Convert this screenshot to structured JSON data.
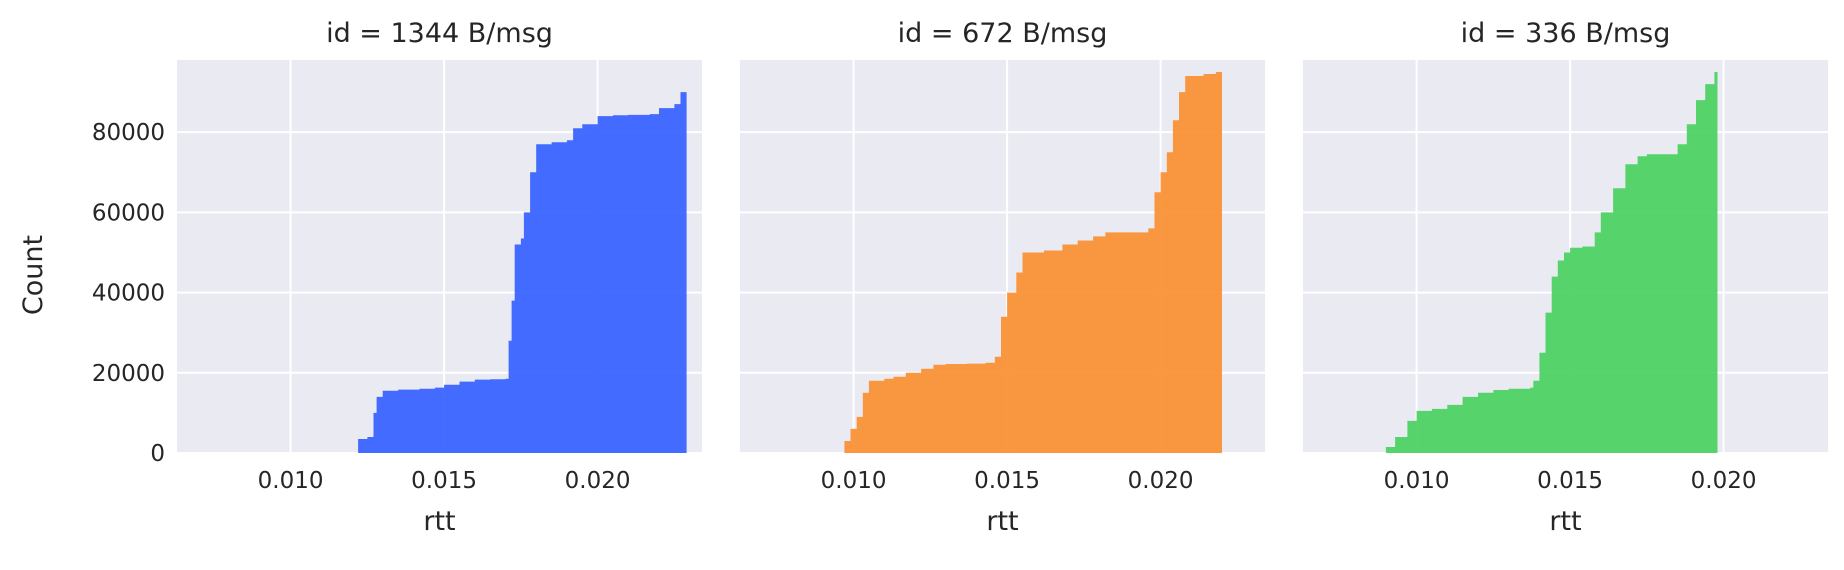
{
  "chart_data": {
    "type": "area",
    "style": "seaborn-darkgrid",
    "background_color": "#eaeaf2",
    "grid_color": "#ffffff",
    "grid": true,
    "xlabel": "rtt",
    "ylabel": "Count",
    "xlim": [
      0.0063,
      0.0234
    ],
    "ylim": [
      0,
      98000
    ],
    "xticks": [
      0.01,
      0.015,
      0.02
    ],
    "xtick_labels": [
      "0.010",
      "0.015",
      "0.020"
    ],
    "yticks": [
      0,
      20000,
      40000,
      60000,
      80000
    ],
    "ytick_labels": [
      "0",
      "20000",
      "40000",
      "60000",
      "80000"
    ],
    "panels": [
      {
        "title": "id = 1344 B/msg",
        "color": "#3a64ff",
        "points": [
          [
            0.012,
            0
          ],
          [
            0.0122,
            3500
          ],
          [
            0.0125,
            4000
          ],
          [
            0.0127,
            10000
          ],
          [
            0.0128,
            14000
          ],
          [
            0.013,
            15500
          ],
          [
            0.0135,
            15800
          ],
          [
            0.0142,
            16000
          ],
          [
            0.0147,
            16300
          ],
          [
            0.015,
            17000
          ],
          [
            0.0155,
            17800
          ],
          [
            0.016,
            18300
          ],
          [
            0.0165,
            18400
          ],
          [
            0.017,
            18500
          ],
          [
            0.0171,
            28000
          ],
          [
            0.0172,
            38000
          ],
          [
            0.0173,
            52000
          ],
          [
            0.0175,
            53500
          ],
          [
            0.0176,
            60000
          ],
          [
            0.0178,
            70000
          ],
          [
            0.018,
            77000
          ],
          [
            0.0185,
            77500
          ],
          [
            0.019,
            78000
          ],
          [
            0.0192,
            81000
          ],
          [
            0.0195,
            82000
          ],
          [
            0.02,
            84000
          ],
          [
            0.0205,
            84200
          ],
          [
            0.021,
            84300
          ],
          [
            0.0217,
            84500
          ],
          [
            0.022,
            86000
          ],
          [
            0.0225,
            87000
          ],
          [
            0.0227,
            90000
          ],
          [
            0.0229,
            95000
          ]
        ]
      },
      {
        "title": "id = 672 B/msg",
        "color": "#fa9237",
        "points": [
          [
            0.0096,
            0
          ],
          [
            0.0097,
            3000
          ],
          [
            0.0099,
            6000
          ],
          [
            0.0101,
            9000
          ],
          [
            0.0103,
            15000
          ],
          [
            0.0105,
            18000
          ],
          [
            0.011,
            18500
          ],
          [
            0.0113,
            19000
          ],
          [
            0.0117,
            20000
          ],
          [
            0.0122,
            21000
          ],
          [
            0.0126,
            22000
          ],
          [
            0.013,
            22200
          ],
          [
            0.0137,
            22300
          ],
          [
            0.0143,
            22500
          ],
          [
            0.0146,
            24000
          ],
          [
            0.0148,
            34000
          ],
          [
            0.015,
            40000
          ],
          [
            0.0153,
            45000
          ],
          [
            0.0155,
            50000
          ],
          [
            0.0162,
            50500
          ],
          [
            0.0168,
            52000
          ],
          [
            0.0173,
            53000
          ],
          [
            0.0178,
            54000
          ],
          [
            0.0182,
            55000
          ],
          [
            0.019,
            55000
          ],
          [
            0.0196,
            56000
          ],
          [
            0.0198,
            65000
          ],
          [
            0.02,
            70000
          ],
          [
            0.0202,
            75000
          ],
          [
            0.0204,
            83000
          ],
          [
            0.0206,
            90000
          ],
          [
            0.0208,
            94000
          ],
          [
            0.0214,
            94500
          ],
          [
            0.0218,
            95000
          ],
          [
            0.022,
            95000
          ]
        ]
      },
      {
        "title": "id = 336 B/msg",
        "color": "#4fd264",
        "points": [
          [
            0.0088,
            0
          ],
          [
            0.009,
            1500
          ],
          [
            0.0093,
            4000
          ],
          [
            0.0097,
            8000
          ],
          [
            0.01,
            10500
          ],
          [
            0.0105,
            11000
          ],
          [
            0.011,
            12000
          ],
          [
            0.0115,
            14000
          ],
          [
            0.012,
            15000
          ],
          [
            0.0125,
            15700
          ],
          [
            0.013,
            16000
          ],
          [
            0.0137,
            16300
          ],
          [
            0.0138,
            18000
          ],
          [
            0.014,
            25000
          ],
          [
            0.0142,
            35000
          ],
          [
            0.0144,
            44000
          ],
          [
            0.0146,
            48000
          ],
          [
            0.0148,
            50000
          ],
          [
            0.015,
            51200
          ],
          [
            0.0154,
            51500
          ],
          [
            0.0158,
            55000
          ],
          [
            0.016,
            60000
          ],
          [
            0.0164,
            66000
          ],
          [
            0.0168,
            72000
          ],
          [
            0.0172,
            74000
          ],
          [
            0.0175,
            74500
          ],
          [
            0.0183,
            74500
          ],
          [
            0.0185,
            77000
          ],
          [
            0.0188,
            82000
          ],
          [
            0.0191,
            88000
          ],
          [
            0.0194,
            92000
          ],
          [
            0.0197,
            95000
          ],
          [
            0.0198,
            95500
          ]
        ]
      }
    ]
  }
}
